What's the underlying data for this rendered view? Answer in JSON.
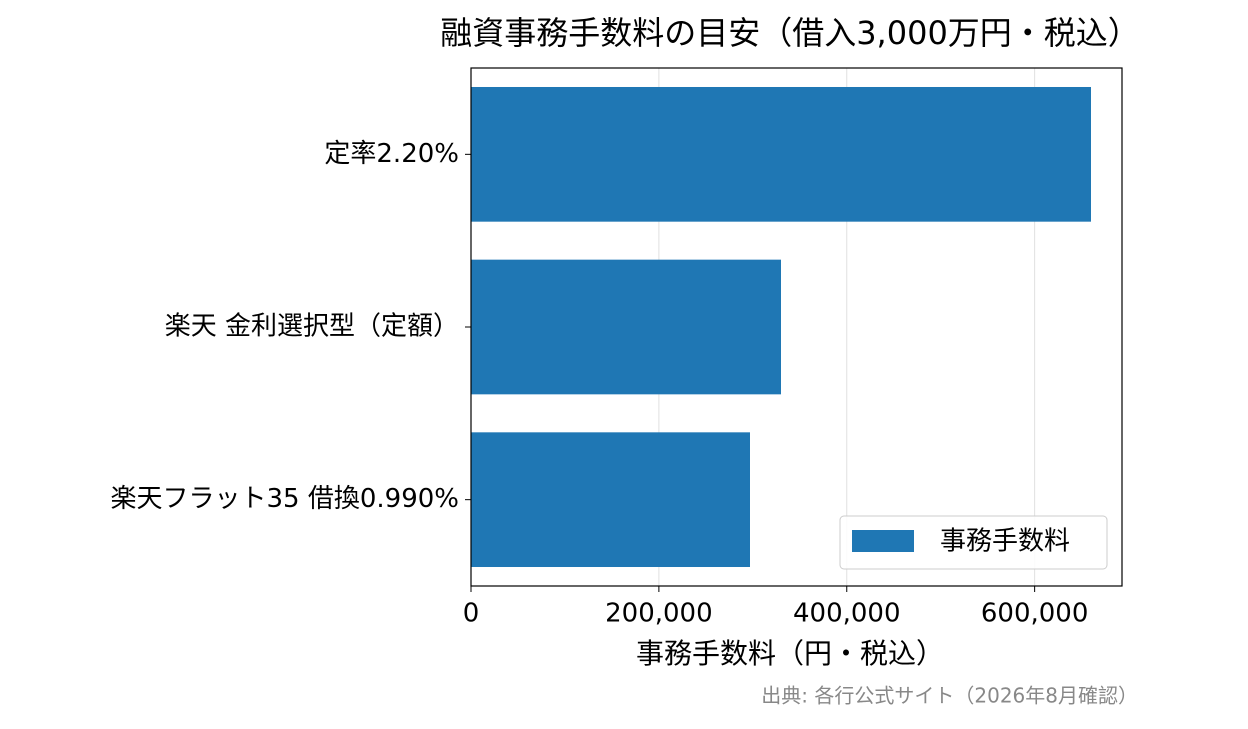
{
  "chart_data": {
    "type": "barh",
    "title": "融資事務手数料の目安（借入3,000万円・税込）",
    "xlabel": "事務手数料（円・税込）",
    "source": "出典: 各行公式サイト（2026年8月確認）",
    "categories": [
      "定率2.20%",
      "楽天 金利選択型（定額）",
      "楽天フラット35 借換0.990%"
    ],
    "series": [
      {
        "name": "事務手数料",
        "color": "#1f77b4",
        "values": [
          660000,
          330000,
          297000
        ]
      }
    ],
    "xlim": [
      0,
      693000
    ],
    "xticks": [
      0,
      {
        "value": 200000,
        "label": "200,000"
      },
      {
        "value": 400000,
        "label": "400,000"
      },
      {
        "value": 600000,
        "label": "600,000"
      }
    ],
    "grid": true,
    "legend": "lower right"
  }
}
